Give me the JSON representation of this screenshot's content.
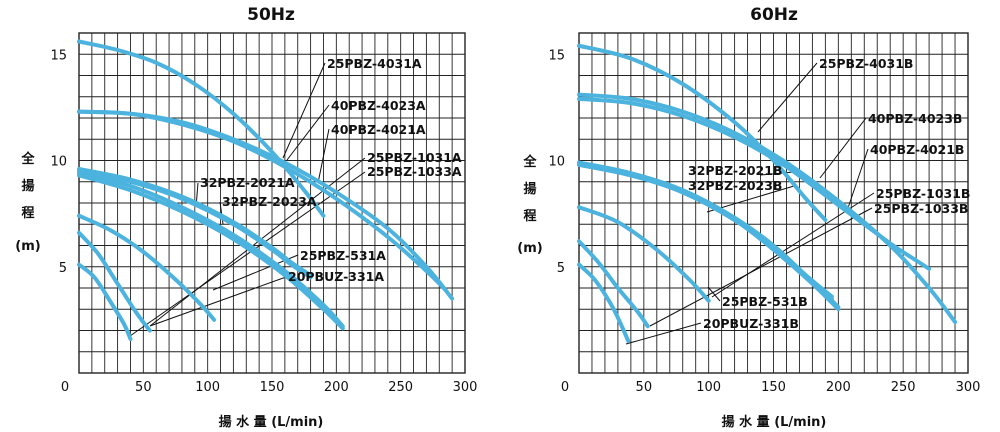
{
  "chart_data": [
    {
      "type": "line",
      "title": "50Hz",
      "xlabel": "揚 水 量 (L/min)",
      "ylabel": [
        "全",
        "揚",
        "程",
        "(m)"
      ],
      "xlim": [
        0,
        300
      ],
      "ylim": [
        0,
        16
      ],
      "x_ticks": [
        "0",
        "50",
        "100",
        "150",
        "200",
        "250",
        "300"
      ],
      "y_ticks": [
        "5",
        "10",
        "15"
      ],
      "grid": true,
      "series": [
        {
          "name": "25PBZ-4031A",
          "x": [
            0,
            30,
            60,
            90,
            120,
            150,
            175,
            190
          ],
          "y": [
            15.6,
            15.2,
            14.6,
            13.6,
            12.2,
            10.4,
            8.6,
            7.4
          ]
        },
        {
          "name": "40PBZ-4023A",
          "x": [
            0,
            40,
            80,
            120,
            160,
            200,
            240,
            270,
            290
          ],
          "y": [
            12.3,
            12.2,
            11.8,
            11.0,
            9.9,
            8.5,
            6.8,
            5.0,
            3.5
          ]
        },
        {
          "name": "40PBZ-4021A",
          "x": [
            0,
            40,
            80,
            120,
            160,
            200,
            240,
            270,
            285
          ],
          "y": [
            12.3,
            12.2,
            11.7,
            10.9,
            9.7,
            8.2,
            6.4,
            4.8,
            3.9
          ]
        },
        {
          "name": "25PBZ-1031A",
          "x": [
            0,
            40,
            80,
            120,
            160,
            190,
            205
          ],
          "y": [
            9.4,
            8.8,
            7.8,
            6.5,
            4.8,
            3.2,
            2.2
          ]
        },
        {
          "name": "25PBZ-1033A",
          "x": [
            0,
            40,
            80,
            120,
            160,
            190,
            205
          ],
          "y": [
            9.3,
            8.6,
            7.6,
            6.3,
            4.6,
            3.0,
            2.1
          ]
        },
        {
          "name": "32PBZ-2021A",
          "x": [
            0,
            40,
            80,
            120,
            150,
            165,
            180
          ],
          "y": [
            9.6,
            9.1,
            8.3,
            7.1,
            5.9,
            5.2,
            4.6
          ]
        },
        {
          "name": "32PBZ-2023A",
          "x": [
            0,
            40,
            80,
            120,
            150,
            165,
            180
          ],
          "y": [
            9.5,
            9.0,
            8.2,
            7.0,
            5.8,
            5.1,
            4.5
          ]
        },
        {
          "name": "25PBZ-531A",
          "x": [
            0,
            25,
            50,
            75,
            95,
            105
          ],
          "y": [
            7.4,
            6.7,
            5.7,
            4.4,
            3.2,
            2.5
          ]
        },
        {
          "name": "20PBUZ-331A",
          "x": [
            0,
            15,
            30,
            45,
            55
          ],
          "y": [
            6.6,
            5.6,
            4.2,
            2.8,
            2.0
          ]
        },
        {
          "name": "(unlabeled curve)",
          "x": [
            0,
            12,
            25,
            35,
            40
          ],
          "y": [
            5.1,
            4.5,
            3.3,
            2.3,
            1.6
          ]
        }
      ]
    },
    {
      "type": "line",
      "title": "60Hz",
      "xlabel": "揚 水 量 (L/min)",
      "ylabel": [
        "全",
        "揚",
        "程",
        "(m)"
      ],
      "xlim": [
        0,
        300
      ],
      "ylim": [
        0,
        16
      ],
      "x_ticks": [
        "0",
        "50",
        "100",
        "150",
        "200",
        "250",
        "300"
      ],
      "y_ticks": [
        "5",
        "10",
        "15"
      ],
      "grid": true,
      "series": [
        {
          "name": "25PBZ-4031B",
          "x": [
            0,
            40,
            80,
            120,
            150,
            175,
            190
          ],
          "y": [
            15.4,
            14.8,
            13.6,
            11.8,
            10.0,
            8.2,
            7.2
          ]
        },
        {
          "name": "40PBZ-4023B",
          "x": [
            0,
            40,
            80,
            120,
            160,
            200,
            240,
            270,
            290
          ],
          "y": [
            13.1,
            12.9,
            12.3,
            11.3,
            9.9,
            8.1,
            6.0,
            4.0,
            2.4
          ]
        },
        {
          "name": "40PBZ-4021B",
          "x": [
            0,
            40,
            80,
            120,
            160,
            200,
            240,
            260,
            270
          ],
          "y": [
            12.9,
            12.7,
            12.1,
            11.1,
            9.7,
            7.9,
            6.1,
            5.3,
            4.9
          ]
        },
        {
          "name": "25PBZ-1031B",
          "x": [
            0,
            40,
            80,
            120,
            150,
            180,
            200
          ],
          "y": [
            9.9,
            9.4,
            8.6,
            7.3,
            5.9,
            4.3,
            3.1
          ]
        },
        {
          "name": "25PBZ-1033B",
          "x": [
            0,
            40,
            80,
            120,
            150,
            180,
            200
          ],
          "y": [
            9.8,
            9.3,
            8.5,
            7.2,
            5.8,
            4.2,
            3.0
          ]
        },
        {
          "name": "32PBZ-2021B",
          "x": [
            0,
            40,
            80,
            120,
            150,
            175,
            195
          ],
          "y": [
            9.9,
            9.4,
            8.6,
            7.3,
            6.0,
            4.6,
            3.6
          ]
        },
        {
          "name": "32PBZ-2023B",
          "x": [
            0,
            40,
            80,
            120,
            150,
            175,
            195
          ],
          "y": [
            9.8,
            9.3,
            8.5,
            7.2,
            5.9,
            4.5,
            3.5
          ]
        },
        {
          "name": "25PBZ-531B",
          "x": [
            0,
            30,
            60,
            85,
            100
          ],
          "y": [
            7.8,
            7.1,
            5.8,
            4.4,
            3.4
          ]
        },
        {
          "name": "20PBUZ-331B",
          "x": [
            0,
            15,
            30,
            45,
            53
          ],
          "y": [
            6.2,
            5.2,
            4.0,
            2.9,
            2.2
          ]
        },
        {
          "name": "(unlabeled curve)",
          "x": [
            0,
            12,
            25,
            33,
            38
          ],
          "y": [
            5.1,
            4.4,
            3.2,
            2.2,
            1.5
          ]
        }
      ]
    }
  ],
  "colors": {
    "curve": "#4bb3de",
    "grid": "#222222",
    "leader": "#111111"
  }
}
